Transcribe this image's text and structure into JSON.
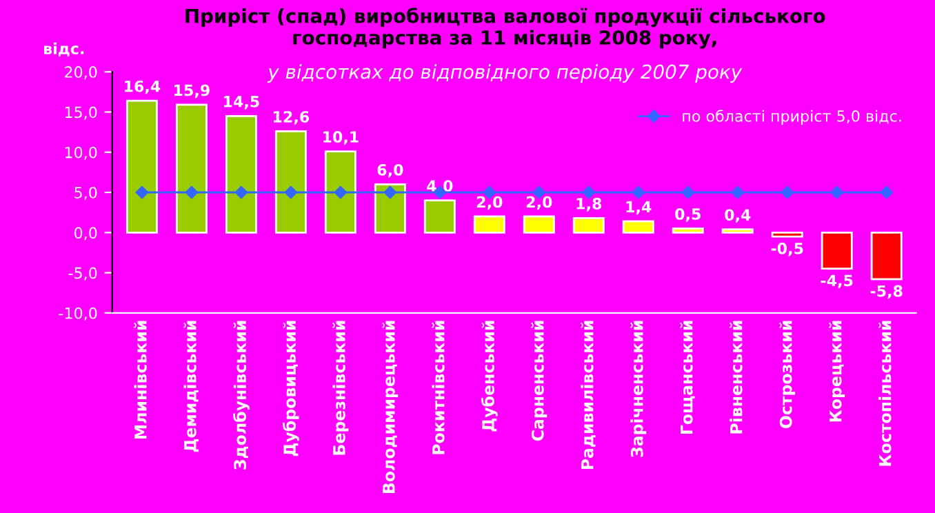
{
  "chart_data": {
    "type": "bar",
    "title": "Приріст (спад) виробництва валової продукції сільського\nгосподарства за 11 місяців 2008 року,",
    "subtitle": "у відсотках до відповідного періоду 2007 року",
    "ylabel": "відс.",
    "categories": [
      "Млинівський",
      "Демидівський",
      "Здолбунівський",
      "Дубровицький",
      "Березнівський",
      "Володимирецький",
      "Рокитнівський",
      "Дубенський",
      "Сарненський",
      "Радивилівський",
      "Зарічненський",
      "Гощанський",
      "Рівненський",
      "Острозький",
      "Корецький",
      "Костопільський"
    ],
    "series": [
      {
        "values": [
          16.4,
          15.9,
          14.5,
          12.6,
          10.1,
          6.0,
          4.0,
          2.0,
          2.0,
          1.8,
          1.4,
          0.5,
          0.4,
          -0.5,
          -4.5,
          -5.8
        ],
        "colors": [
          "#99cc00",
          "#99cc00",
          "#99cc00",
          "#99cc00",
          "#99cc00",
          "#99cc00",
          "#99cc00",
          "#ffff00",
          "#ffff00",
          "#ffff00",
          "#ffff00",
          "#ffff00",
          "#ffff00",
          "#ff0000",
          "#ff0000",
          "#ff0000"
        ],
        "value_labels": [
          "16,4",
          "15,9",
          "14,5",
          "12,6",
          "10,1",
          "6,0",
          "4,0",
          "2,0",
          "2,0",
          "1,8",
          "1,4",
          "0,5",
          "0,4",
          "-0,5",
          "-4,5",
          "-5,8"
        ]
      },
      {
        "type": "line",
        "name": "по області приріст 5,0 відс.",
        "color": "#3366ff",
        "marker": "diamond",
        "values": [
          5.0,
          5.0,
          5.0,
          5.0,
          5.0,
          5.0,
          5.0,
          5.0,
          5.0,
          5.0,
          5.0,
          5.0,
          5.0,
          5.0,
          5.0,
          5.0
        ]
      }
    ],
    "ylim": [
      -10,
      20
    ],
    "yticks": [
      {
        "value": -10,
        "label": "-10,0"
      },
      {
        "value": -5,
        "label": "-5,0"
      },
      {
        "value": 0,
        "label": "0,0"
      },
      {
        "value": 5,
        "label": "5,0"
      },
      {
        "value": 10,
        "label": "10,0"
      },
      {
        "value": 15,
        "label": "15,0"
      },
      {
        "value": 20,
        "label": "20,0"
      }
    ],
    "grid": false,
    "legend": "top right"
  }
}
